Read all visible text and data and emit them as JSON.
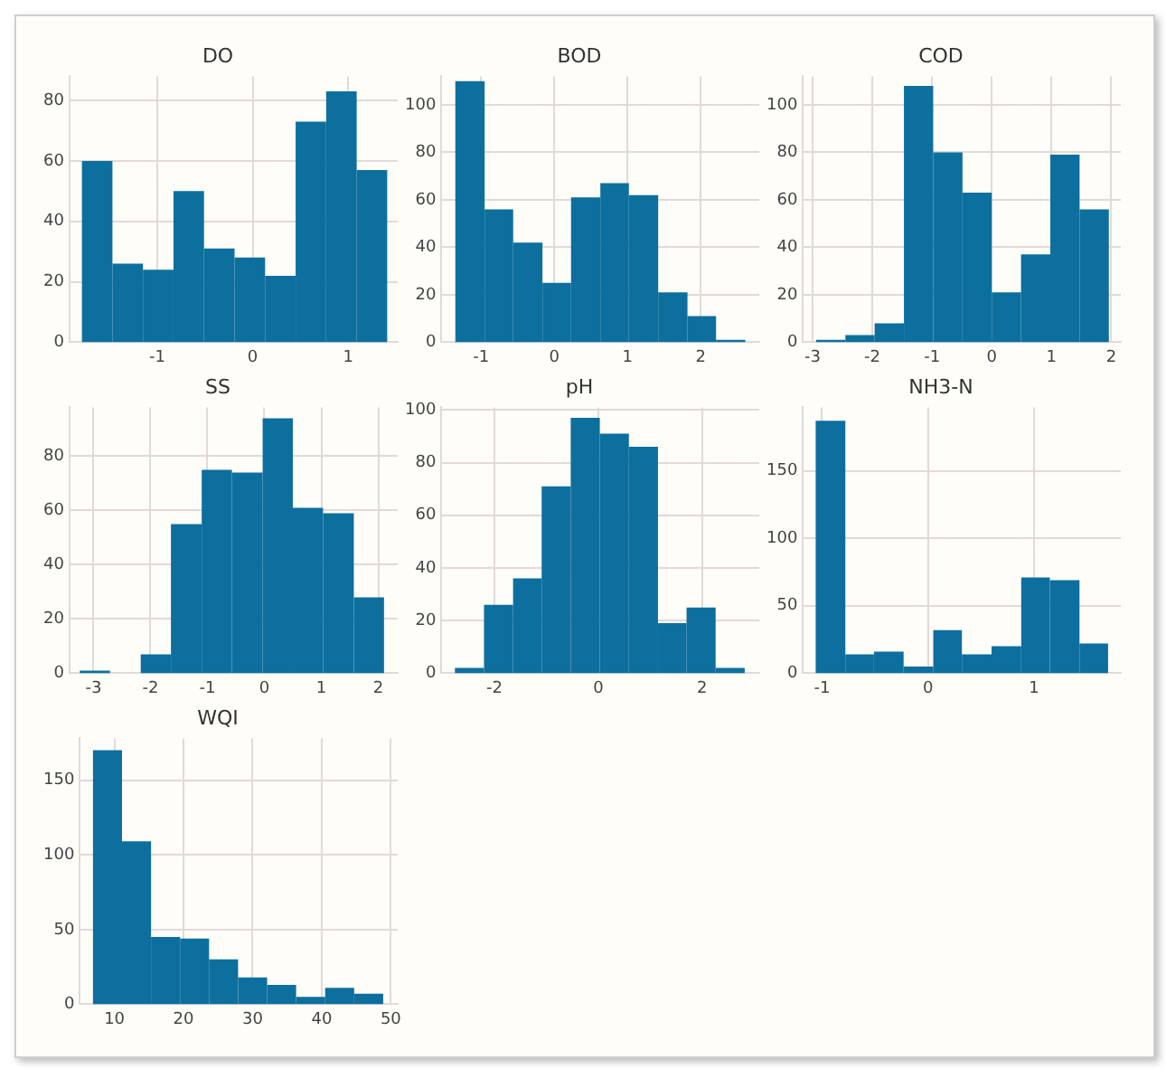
{
  "chart_data": [
    {
      "type": "histogram",
      "title": "DO",
      "bins": [
        -1.79,
        -1.47,
        -1.15,
        -0.83,
        -0.51,
        -0.19,
        0.13,
        0.45,
        0.77,
        1.09,
        1.41
      ],
      "values": [
        60,
        26,
        24,
        50,
        31,
        28,
        22,
        73,
        83,
        57
      ],
      "color": "#0d6f9e",
      "xlim": [
        -1.92,
        1.52
      ],
      "xticks": [
        -1,
        0,
        1
      ],
      "ylim": [
        0,
        88
      ],
      "yticks": [
        0,
        20,
        40,
        60,
        80
      ],
      "grid": true
    },
    {
      "type": "histogram",
      "title": "BOD",
      "bins": [
        -1.35,
        -0.95,
        -0.56,
        -0.16,
        0.23,
        0.63,
        1.02,
        1.42,
        1.82,
        2.21,
        2.61
      ],
      "values": [
        110,
        56,
        42,
        25,
        61,
        67,
        62,
        21,
        11,
        1
      ],
      "color": "#0d6f9e",
      "xlim": [
        -1.54,
        2.8
      ],
      "xticks": [
        -1,
        0,
        1,
        2
      ],
      "ylim": [
        0,
        112
      ],
      "yticks": [
        0,
        20,
        40,
        60,
        80,
        100
      ],
      "grid": true
    },
    {
      "type": "histogram",
      "title": "COD",
      "bins": [
        -2.94,
        -2.45,
        -1.96,
        -1.47,
        -0.98,
        -0.49,
        0.0,
        0.49,
        0.98,
        1.47,
        1.96
      ],
      "values": [
        1,
        3,
        8,
        108,
        80,
        63,
        21,
        37,
        79,
        56
      ],
      "color": "#0d6f9e",
      "xlim": [
        -3.16,
        2.16
      ],
      "xticks": [
        -3,
        -2,
        -1,
        0,
        1,
        2
      ],
      "ylim": [
        0,
        112
      ],
      "yticks": [
        0,
        20,
        40,
        60,
        80,
        100
      ],
      "grid": true
    },
    {
      "type": "histogram",
      "title": "SS",
      "bins": [
        -3.24,
        -2.71,
        -2.17,
        -1.64,
        -1.1,
        -0.57,
        -0.03,
        0.5,
        1.03,
        1.57,
        2.1
      ],
      "values": [
        1,
        0,
        7,
        55,
        75,
        74,
        94,
        61,
        59,
        28
      ],
      "color": "#0d6f9e",
      "xlim": [
        -3.42,
        2.34
      ],
      "xticks": [
        -3,
        -2,
        -1,
        0,
        1,
        2
      ],
      "ylim": [
        0,
        98
      ],
      "yticks": [
        0,
        20,
        40,
        60,
        80
      ],
      "grid": true
    },
    {
      "type": "histogram",
      "title": "pH",
      "bins": [
        -2.76,
        -2.2,
        -1.64,
        -1.09,
        -0.53,
        0.03,
        0.59,
        1.15,
        1.7,
        2.26,
        2.82
      ],
      "values": [
        2,
        26,
        36,
        71,
        97,
        91,
        86,
        19,
        25,
        2
      ],
      "color": "#0d6f9e",
      "xlim": [
        -3.02,
        3.1
      ],
      "xticks": [
        -2,
        0,
        2
      ],
      "ylim": [
        0,
        101
      ],
      "yticks": [
        0,
        20,
        40,
        60,
        80,
        100
      ],
      "grid": true
    },
    {
      "type": "histogram",
      "title": "NH3-N",
      "bins": [
        -1.06,
        -0.78,
        -0.51,
        -0.23,
        0.05,
        0.32,
        0.6,
        0.88,
        1.15,
        1.43,
        1.7
      ],
      "values": [
        187,
        14,
        16,
        5,
        32,
        14,
        20,
        71,
        69,
        22
      ],
      "color": "#0d6f9e",
      "xlim": [
        -1.18,
        1.82
      ],
      "xticks": [
        -1,
        0,
        1
      ],
      "ylim": [
        0,
        197
      ],
      "yticks": [
        0,
        50,
        100,
        150
      ],
      "grid": true
    },
    {
      "type": "histogram",
      "title": "WQI",
      "bins": [
        6.9,
        11.1,
        15.3,
        19.5,
        23.7,
        27.9,
        32.1,
        36.3,
        40.5,
        44.7,
        48.9
      ],
      "values": [
        170,
        109,
        45,
        44,
        30,
        18,
        13,
        5,
        11,
        7
      ],
      "color": "#0d6f9e",
      "xlim": [
        5,
        51
      ],
      "xticks": [
        10,
        20,
        30,
        40,
        50
      ],
      "ylim": [
        0,
        178
      ],
      "yticks": [
        0,
        50,
        100,
        150
      ],
      "grid": true
    }
  ]
}
